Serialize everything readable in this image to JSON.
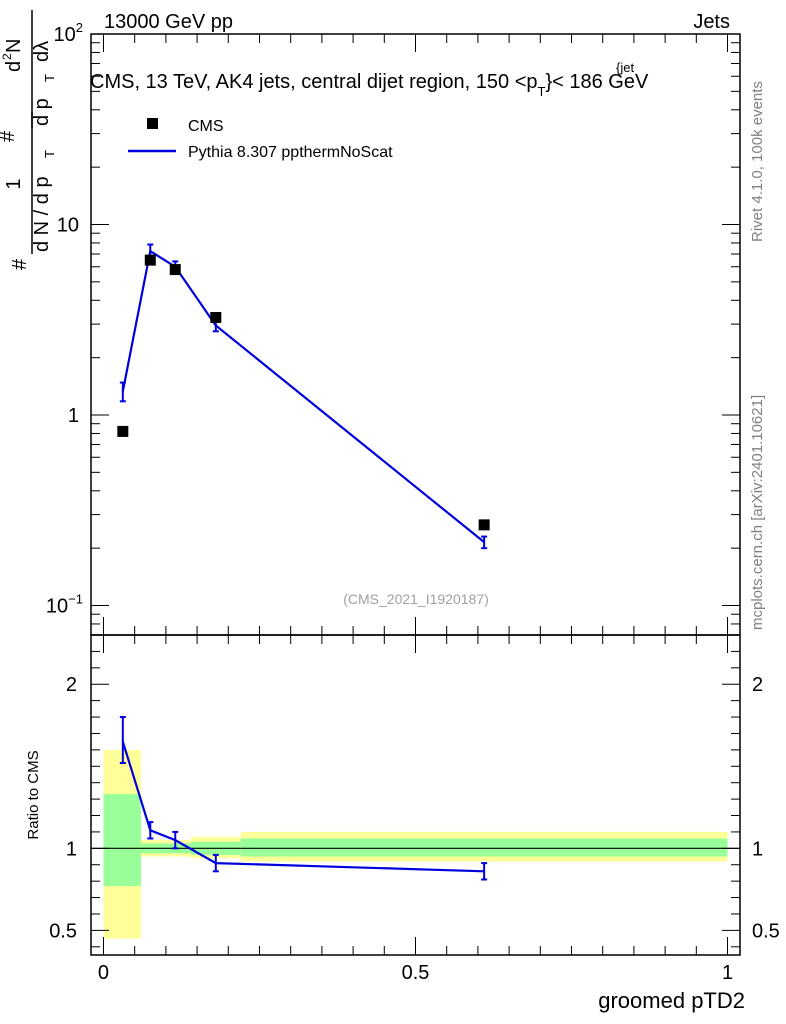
{
  "header": {
    "left": "13000 GeV pp",
    "right": "Jets"
  },
  "side_labels": {
    "rivet": "Rivet 4.1.0,  100k events",
    "mcplots": "mcplots.cern.ch [arXiv:2401.10621]"
  },
  "ylabel_parts": {
    "hash1": "#",
    "one": "1",
    "dN_dpT": "d N / d p",
    "T1": "T",
    "hash2": "#",
    "d2N": "d",
    "two": "2",
    "N": "N",
    "dpTdl": "d p",
    "T2": "T",
    "dl": "dλ"
  },
  "chart_data": [
    {
      "type": "scatter",
      "title": "CMS, 13 TeV, AK4 jets, central dijet region, 150 <p",
      "title_sup": "{jet",
      "title_sub": "T",
      "title_tail": "}< 186 GeV",
      "watermark": "(CMS_2021_I1920187)",
      "xlabel": "groomed pTD2",
      "xlim": [
        -0.02,
        1.02
      ],
      "yscale": "log",
      "ylim": [
        0.07,
        100
      ],
      "yticks": [
        {
          "value": 0.1,
          "base": "10",
          "exp": "−1"
        },
        {
          "value": 1,
          "base": "1",
          "exp": ""
        },
        {
          "value": 10,
          "base": "10",
          "exp": ""
        },
        {
          "value": 100,
          "base": "10",
          "exp": "2"
        }
      ],
      "legend_position": "top-left",
      "series": [
        {
          "name": "CMS",
          "marker": "square",
          "color": "#000000",
          "x": [
            0.031,
            0.075,
            0.115,
            0.18,
            0.61
          ],
          "y": [
            0.82,
            6.5,
            5.8,
            3.25,
            0.265
          ]
        },
        {
          "name": "Pythia 8.307 ppthermNoScat",
          "marker": "line",
          "color": "#0000dd",
          "x": [
            0.031,
            0.075,
            0.115,
            0.18,
            0.61
          ],
          "y": [
            1.33,
            7.25,
            6.0,
            2.95,
            0.215
          ],
          "yerr_low": [
            0.15,
            0.6,
            0.4,
            0.2,
            0.015
          ],
          "yerr_high": [
            0.15,
            0.6,
            0.4,
            0.2,
            0.015
          ]
        }
      ]
    },
    {
      "type": "line",
      "ylabel": "Ratio to CMS",
      "xlabel": "groomed pTD2",
      "xlim": [
        -0.02,
        1.02
      ],
      "ylim": [
        0.35,
        2.3
      ],
      "yticks": [
        0.5,
        1,
        2
      ],
      "yticklabels": [
        "0.5",
        "1",
        "2"
      ],
      "xticks": [
        0,
        0.5,
        1
      ],
      "xticklabels": [
        "0",
        "0.5",
        "1"
      ],
      "reference_line": 1,
      "bands": [
        {
          "x0": 0.0,
          "x1": 0.06,
          "yellow": [
            0.45,
            1.6
          ],
          "green": [
            0.77,
            1.33
          ]
        },
        {
          "x0": 0.06,
          "x1": 0.14,
          "yellow": [
            0.95,
            1.05
          ],
          "green": [
            0.97,
            1.03
          ]
        },
        {
          "x0": 0.14,
          "x1": 0.22,
          "yellow": [
            0.94,
            1.07
          ],
          "green": [
            0.96,
            1.04
          ]
        },
        {
          "x0": 0.22,
          "x1": 1.0,
          "yellow": [
            0.92,
            1.1
          ],
          "green": [
            0.95,
            1.06
          ]
        }
      ],
      "band_colors": {
        "yellow": "#ffff99",
        "green": "#99ff99"
      },
      "series": [
        {
          "name": "Pythia 8.307 ppthermNoScat",
          "color": "#0000dd",
          "x": [
            0.031,
            0.075,
            0.115,
            0.18,
            0.61
          ],
          "y": [
            1.65,
            1.11,
            1.05,
            0.91,
            0.86
          ],
          "yerr_low": [
            0.13,
            0.05,
            0.05,
            0.05,
            0.05
          ],
          "yerr_high": [
            0.15,
            0.05,
            0.05,
            0.05,
            0.05
          ]
        }
      ]
    }
  ]
}
